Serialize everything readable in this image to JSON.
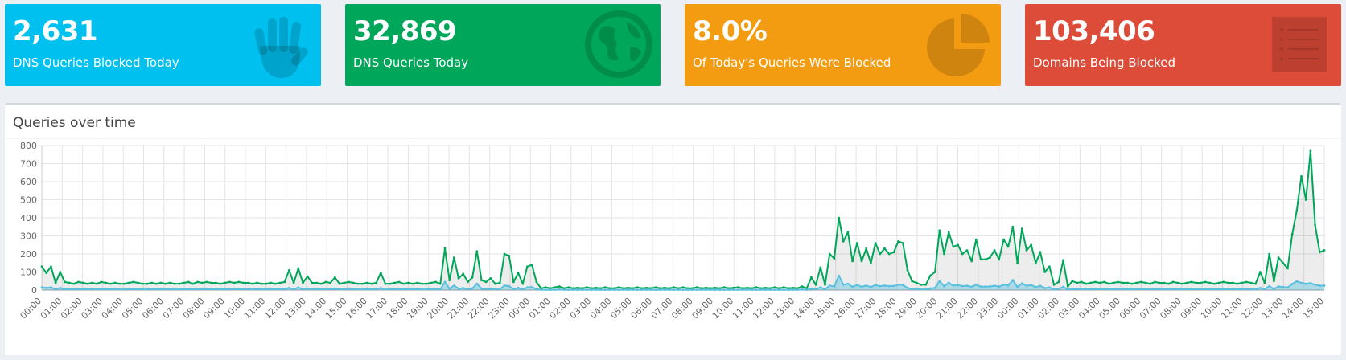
{
  "stats": [
    {
      "value": "2,631",
      "label": "DNS Queries Blocked Today",
      "icon": "hand-icon",
      "color": "#00c0ef"
    },
    {
      "value": "32,869",
      "label": "DNS Queries Today",
      "icon": "globe-icon",
      "color": "#00a65a"
    },
    {
      "value": "8.0%",
      "label": "Of Today's Queries Were Blocked",
      "icon": "pie-chart-icon",
      "color": "#f39c12"
    },
    {
      "value": "103,406",
      "label": "Domains Being Blocked",
      "icon": "list-icon",
      "color": "#dd4b39"
    }
  ],
  "chart_panel": {
    "title": "Queries over time"
  },
  "chart_data": {
    "type": "area",
    "ylim": [
      0,
      800
    ],
    "yticks": [
      0,
      100,
      200,
      300,
      400,
      500,
      600,
      700,
      800
    ],
    "x_ticks": [
      "00:00",
      "01:00",
      "02:00",
      "03:00",
      "04:00",
      "05:00",
      "06:00",
      "07:00",
      "08:00",
      "09:00",
      "10:00",
      "11:00",
      "12:00",
      "13:00",
      "14:00",
      "15:00",
      "16:00",
      "17:00",
      "18:00",
      "19:00",
      "20:00",
      "21:00",
      "22:00",
      "23:00",
      "00:00",
      "01:00",
      "02:00",
      "03:00",
      "04:00",
      "05:00",
      "06:00",
      "07:00",
      "08:00",
      "09:00",
      "10:00",
      "11:00",
      "12:00",
      "13:00",
      "14:00",
      "15:00",
      "16:00",
      "17:00",
      "18:00",
      "19:00",
      "20:00",
      "21:00",
      "22:00",
      "23:00",
      "00:00",
      "01:00",
      "02:00",
      "03:00",
      "04:00",
      "05:00",
      "06:00",
      "07:00",
      "08:00",
      "09:00",
      "10:00",
      "11:00",
      "12:00",
      "13:00",
      "14:00",
      "15:00"
    ],
    "grid": true,
    "series": [
      {
        "color": "#00a65a",
        "values": [
          130,
          95,
          130,
          40,
          100,
          45,
          40,
          35,
          45,
          40,
          35,
          40,
          35,
          45,
          40,
          35,
          40,
          35,
          35,
          40,
          45,
          40,
          35,
          35,
          40,
          35,
          40,
          35,
          40,
          35,
          35,
          40,
          45,
          35,
          45,
          40,
          45,
          40,
          40,
          35,
          40,
          45,
          40,
          45,
          40,
          40,
          35,
          40,
          35,
          35,
          40,
          35,
          40,
          45,
          110,
          40,
          120,
          40,
          75,
          40,
          40,
          35,
          45,
          40,
          70,
          35,
          40,
          45,
          40,
          35,
          35,
          40,
          35,
          40,
          95,
          35,
          35,
          40,
          45,
          35,
          40,
          35,
          40,
          35,
          35,
          40,
          45,
          35,
          230,
          55,
          180,
          65,
          90,
          45,
          70,
          215,
          55,
          45,
          65,
          35,
          40,
          200,
          190,
          45,
          95,
          35,
          130,
          140,
          45,
          10,
          15,
          10,
          15,
          20,
          10,
          15,
          10,
          12,
          10,
          15,
          10,
          12,
          10,
          15,
          10,
          10,
          15,
          10,
          12,
          10,
          15,
          10,
          12,
          10,
          15,
          10,
          12,
          10,
          15,
          10,
          15,
          10,
          10,
          15,
          10,
          12,
          10,
          12,
          10,
          15,
          10,
          12,
          15,
          10,
          12,
          10,
          15,
          10,
          12,
          10,
          15,
          10,
          15,
          10,
          12,
          10,
          20,
          10,
          70,
          30,
          125,
          30,
          200,
          175,
          400,
          270,
          320,
          160,
          260,
          160,
          230,
          150,
          260,
          200,
          230,
          200,
          210,
          270,
          260,
          110,
          50,
          40,
          30,
          30,
          80,
          100,
          330,
          200,
          320,
          240,
          250,
          200,
          220,
          160,
          280,
          170,
          170,
          180,
          220,
          170,
          280,
          240,
          350,
          150,
          340,
          220,
          250,
          150,
          210,
          100,
          130,
          30,
          45,
          165,
          20,
          50,
          40,
          45,
          35,
          40,
          45,
          40,
          45,
          35,
          40,
          45,
          40,
          40,
          35,
          40,
          45,
          40,
          35,
          45,
          40,
          40,
          35,
          45,
          40,
          35,
          40,
          45,
          40,
          40,
          45,
          40,
          35,
          40,
          45,
          40,
          40,
          35,
          40,
          45,
          40,
          35,
          100,
          40,
          200,
          50,
          180,
          150,
          120,
          310,
          440,
          630,
          500,
          770,
          360,
          210,
          220
        ]
      },
      {
        "color": "#5bc0de",
        "values": [
          15,
          12,
          15,
          5,
          12,
          5,
          5,
          4,
          5,
          5,
          4,
          5,
          4,
          5,
          5,
          4,
          5,
          4,
          4,
          5,
          5,
          5,
          4,
          4,
          5,
          4,
          5,
          4,
          5,
          4,
          4,
          5,
          5,
          4,
          5,
          5,
          5,
          5,
          5,
          4,
          5,
          5,
          5,
          5,
          5,
          5,
          4,
          5,
          4,
          4,
          5,
          4,
          5,
          5,
          12,
          5,
          14,
          5,
          9,
          5,
          5,
          4,
          5,
          5,
          8,
          4,
          5,
          5,
          5,
          4,
          4,
          5,
          4,
          5,
          11,
          4,
          4,
          5,
          5,
          4,
          5,
          4,
          5,
          4,
          4,
          5,
          5,
          4,
          45,
          8,
          25,
          8,
          11,
          6,
          9,
          35,
          8,
          6,
          8,
          4,
          5,
          25,
          22,
          6,
          12,
          4,
          15,
          16,
          6,
          2,
          2,
          2,
          2,
          3,
          2,
          2,
          2,
          2,
          2,
          2,
          2,
          2,
          2,
          2,
          2,
          2,
          2,
          2,
          2,
          2,
          2,
          2,
          2,
          2,
          2,
          2,
          2,
          2,
          2,
          2,
          2,
          2,
          2,
          2,
          2,
          2,
          2,
          2,
          2,
          2,
          2,
          2,
          2,
          2,
          2,
          2,
          2,
          2,
          2,
          2,
          2,
          2,
          2,
          2,
          2,
          2,
          3,
          2,
          8,
          4,
          15,
          4,
          25,
          20,
          80,
          30,
          35,
          18,
          28,
          18,
          25,
          17,
          28,
          22,
          25,
          22,
          23,
          30,
          28,
          12,
          6,
          5,
          4,
          4,
          9,
          12,
          50,
          22,
          40,
          26,
          28,
          22,
          24,
          18,
          30,
          19,
          19,
          20,
          24,
          19,
          30,
          26,
          55,
          17,
          37,
          24,
          28,
          17,
          23,
          11,
          14,
          4,
          5,
          18,
          3,
          6,
          5,
          5,
          4,
          5,
          5,
          5,
          5,
          4,
          5,
          5,
          5,
          5,
          4,
          5,
          5,
          5,
          4,
          5,
          5,
          5,
          4,
          5,
          5,
          4,
          5,
          5,
          5,
          5,
          5,
          5,
          4,
          5,
          5,
          5,
          5,
          4,
          5,
          5,
          5,
          4,
          12,
          5,
          22,
          6,
          20,
          17,
          14,
          34,
          48,
          40,
          35,
          38,
          30,
          24,
          25
        ]
      }
    ]
  }
}
